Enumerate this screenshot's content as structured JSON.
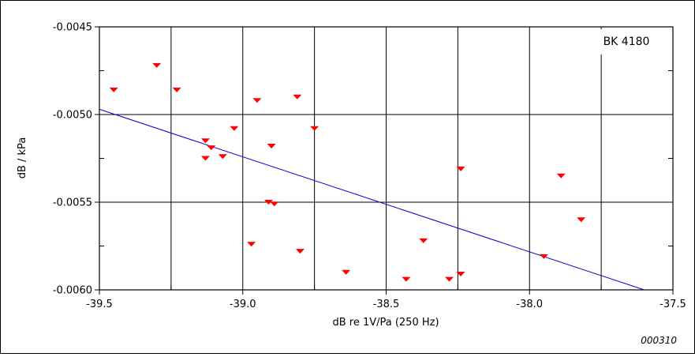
{
  "chart_data": {
    "type": "scatter",
    "xlabel": "dB re 1V/Pa  (250 Hz)",
    "ylabel": "dB / kPa",
    "xlim": [
      -39.5,
      -37.5
    ],
    "ylim": [
      -0.006,
      -0.0045
    ],
    "x_ticks": [
      -39.5,
      -39.0,
      -38.5,
      -38.0,
      -37.5
    ],
    "x_tick_labels": [
      "-39.5",
      "-39.0",
      "-38.5",
      "-38.0",
      "-37.5"
    ],
    "y_ticks": [
      -0.006,
      -0.0055,
      -0.005,
      -0.0045
    ],
    "y_tick_labels": [
      "-0.0060",
      "-0.0055",
      "-0.0050",
      "-0.0045"
    ],
    "grid": true,
    "legend_label": "BK 4180",
    "legend_position": "top-right",
    "marker": "downward-triangle",
    "marker_color": "#ff0000",
    "fit_line_color": "#0000cc",
    "points": [
      {
        "x": -39.45,
        "y": -0.00486
      },
      {
        "x": -39.3,
        "y": -0.00472
      },
      {
        "x": -39.23,
        "y": -0.00486
      },
      {
        "x": -39.13,
        "y": -0.00515
      },
      {
        "x": -39.13,
        "y": -0.00525
      },
      {
        "x": -39.11,
        "y": -0.00519
      },
      {
        "x": -39.07,
        "y": -0.00524
      },
      {
        "x": -39.03,
        "y": -0.00508
      },
      {
        "x": -38.95,
        "y": -0.00492
      },
      {
        "x": -38.97,
        "y": -0.00574
      },
      {
        "x": -38.9,
        "y": -0.00518
      },
      {
        "x": -38.91,
        "y": -0.0055
      },
      {
        "x": -38.89,
        "y": -0.00551
      },
      {
        "x": -38.81,
        "y": -0.0049
      },
      {
        "x": -38.8,
        "y": -0.00578
      },
      {
        "x": -38.75,
        "y": -0.00508
      },
      {
        "x": -38.64,
        "y": -0.0059
      },
      {
        "x": -38.43,
        "y": -0.00594
      },
      {
        "x": -38.37,
        "y": -0.00572
      },
      {
        "x": -38.28,
        "y": -0.00594
      },
      {
        "x": -38.24,
        "y": -0.00531
      },
      {
        "x": -38.24,
        "y": -0.00591
      },
      {
        "x": -37.95,
        "y": -0.00581
      },
      {
        "x": -37.89,
        "y": -0.00535
      },
      {
        "x": -37.82,
        "y": -0.0056
      }
    ],
    "fit_line": {
      "x": [
        -39.5,
        -37.6
      ],
      "y": [
        -0.00497,
        -0.006
      ]
    }
  },
  "figure_id": "000310"
}
